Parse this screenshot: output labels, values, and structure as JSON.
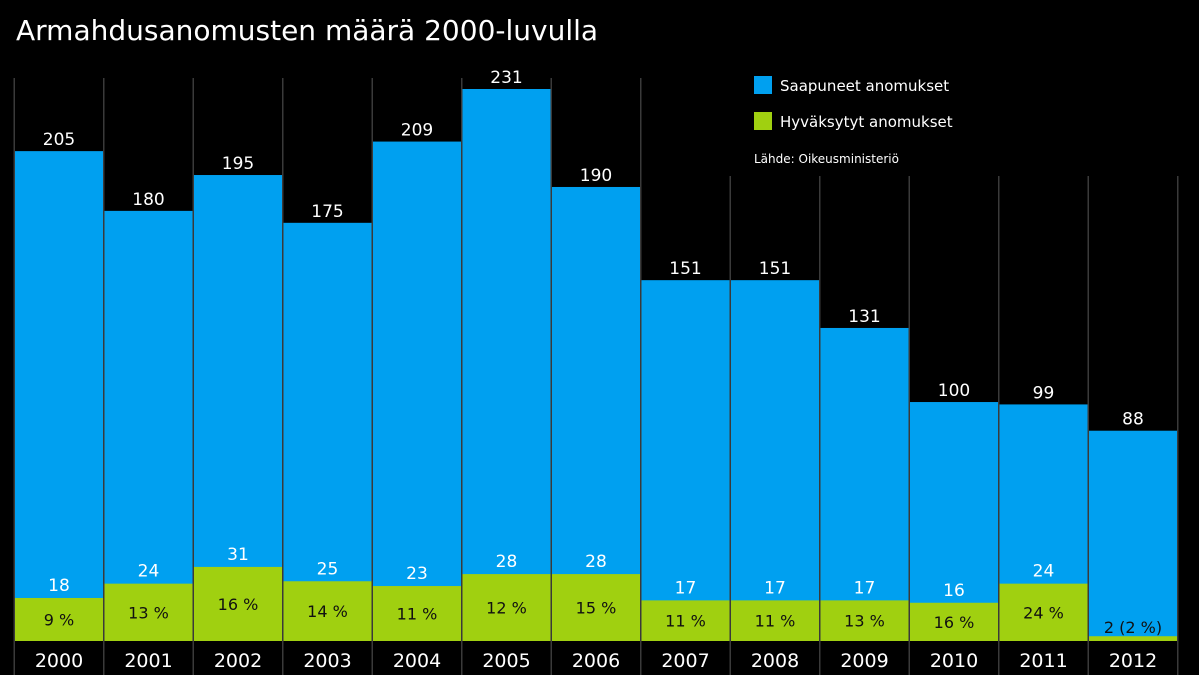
{
  "chart_data": {
    "type": "bar",
    "title": "Armahdusanomusten määrä 2000-luvulla",
    "source": "Lähde: Oikeusministeriö",
    "categories": [
      "2000",
      "2001",
      "2002",
      "2003",
      "2004",
      "2005",
      "2006",
      "2007",
      "2008",
      "2009",
      "2010",
      "2011",
      "2012"
    ],
    "series": [
      {
        "name": "Saapuneet anomukset",
        "color": "#00a0f0",
        "values": [
          205,
          180,
          195,
          175,
          209,
          231,
          190,
          151,
          151,
          131,
          100,
          99,
          88
        ]
      },
      {
        "name": "Hyväksytyt anomukset",
        "color": "#a0d010",
        "values": [
          18,
          24,
          31,
          25,
          23,
          28,
          28,
          17,
          17,
          17,
          16,
          24,
          2
        ],
        "labels": [
          "18",
          "24",
          "31",
          "25",
          "23",
          "28",
          "28",
          "17",
          "17",
          "17",
          "16",
          "24",
          ""
        ],
        "percent_labels": [
          "9 %",
          "13 %",
          "16 %",
          "14 %",
          "11 %",
          "12 %",
          "15 %",
          "11 %",
          "11 %",
          "13 %",
          "16 %",
          "24 %",
          "2 (2 %)"
        ]
      }
    ],
    "ylim": [
      0,
      231
    ],
    "legend_position": "top-right"
  }
}
